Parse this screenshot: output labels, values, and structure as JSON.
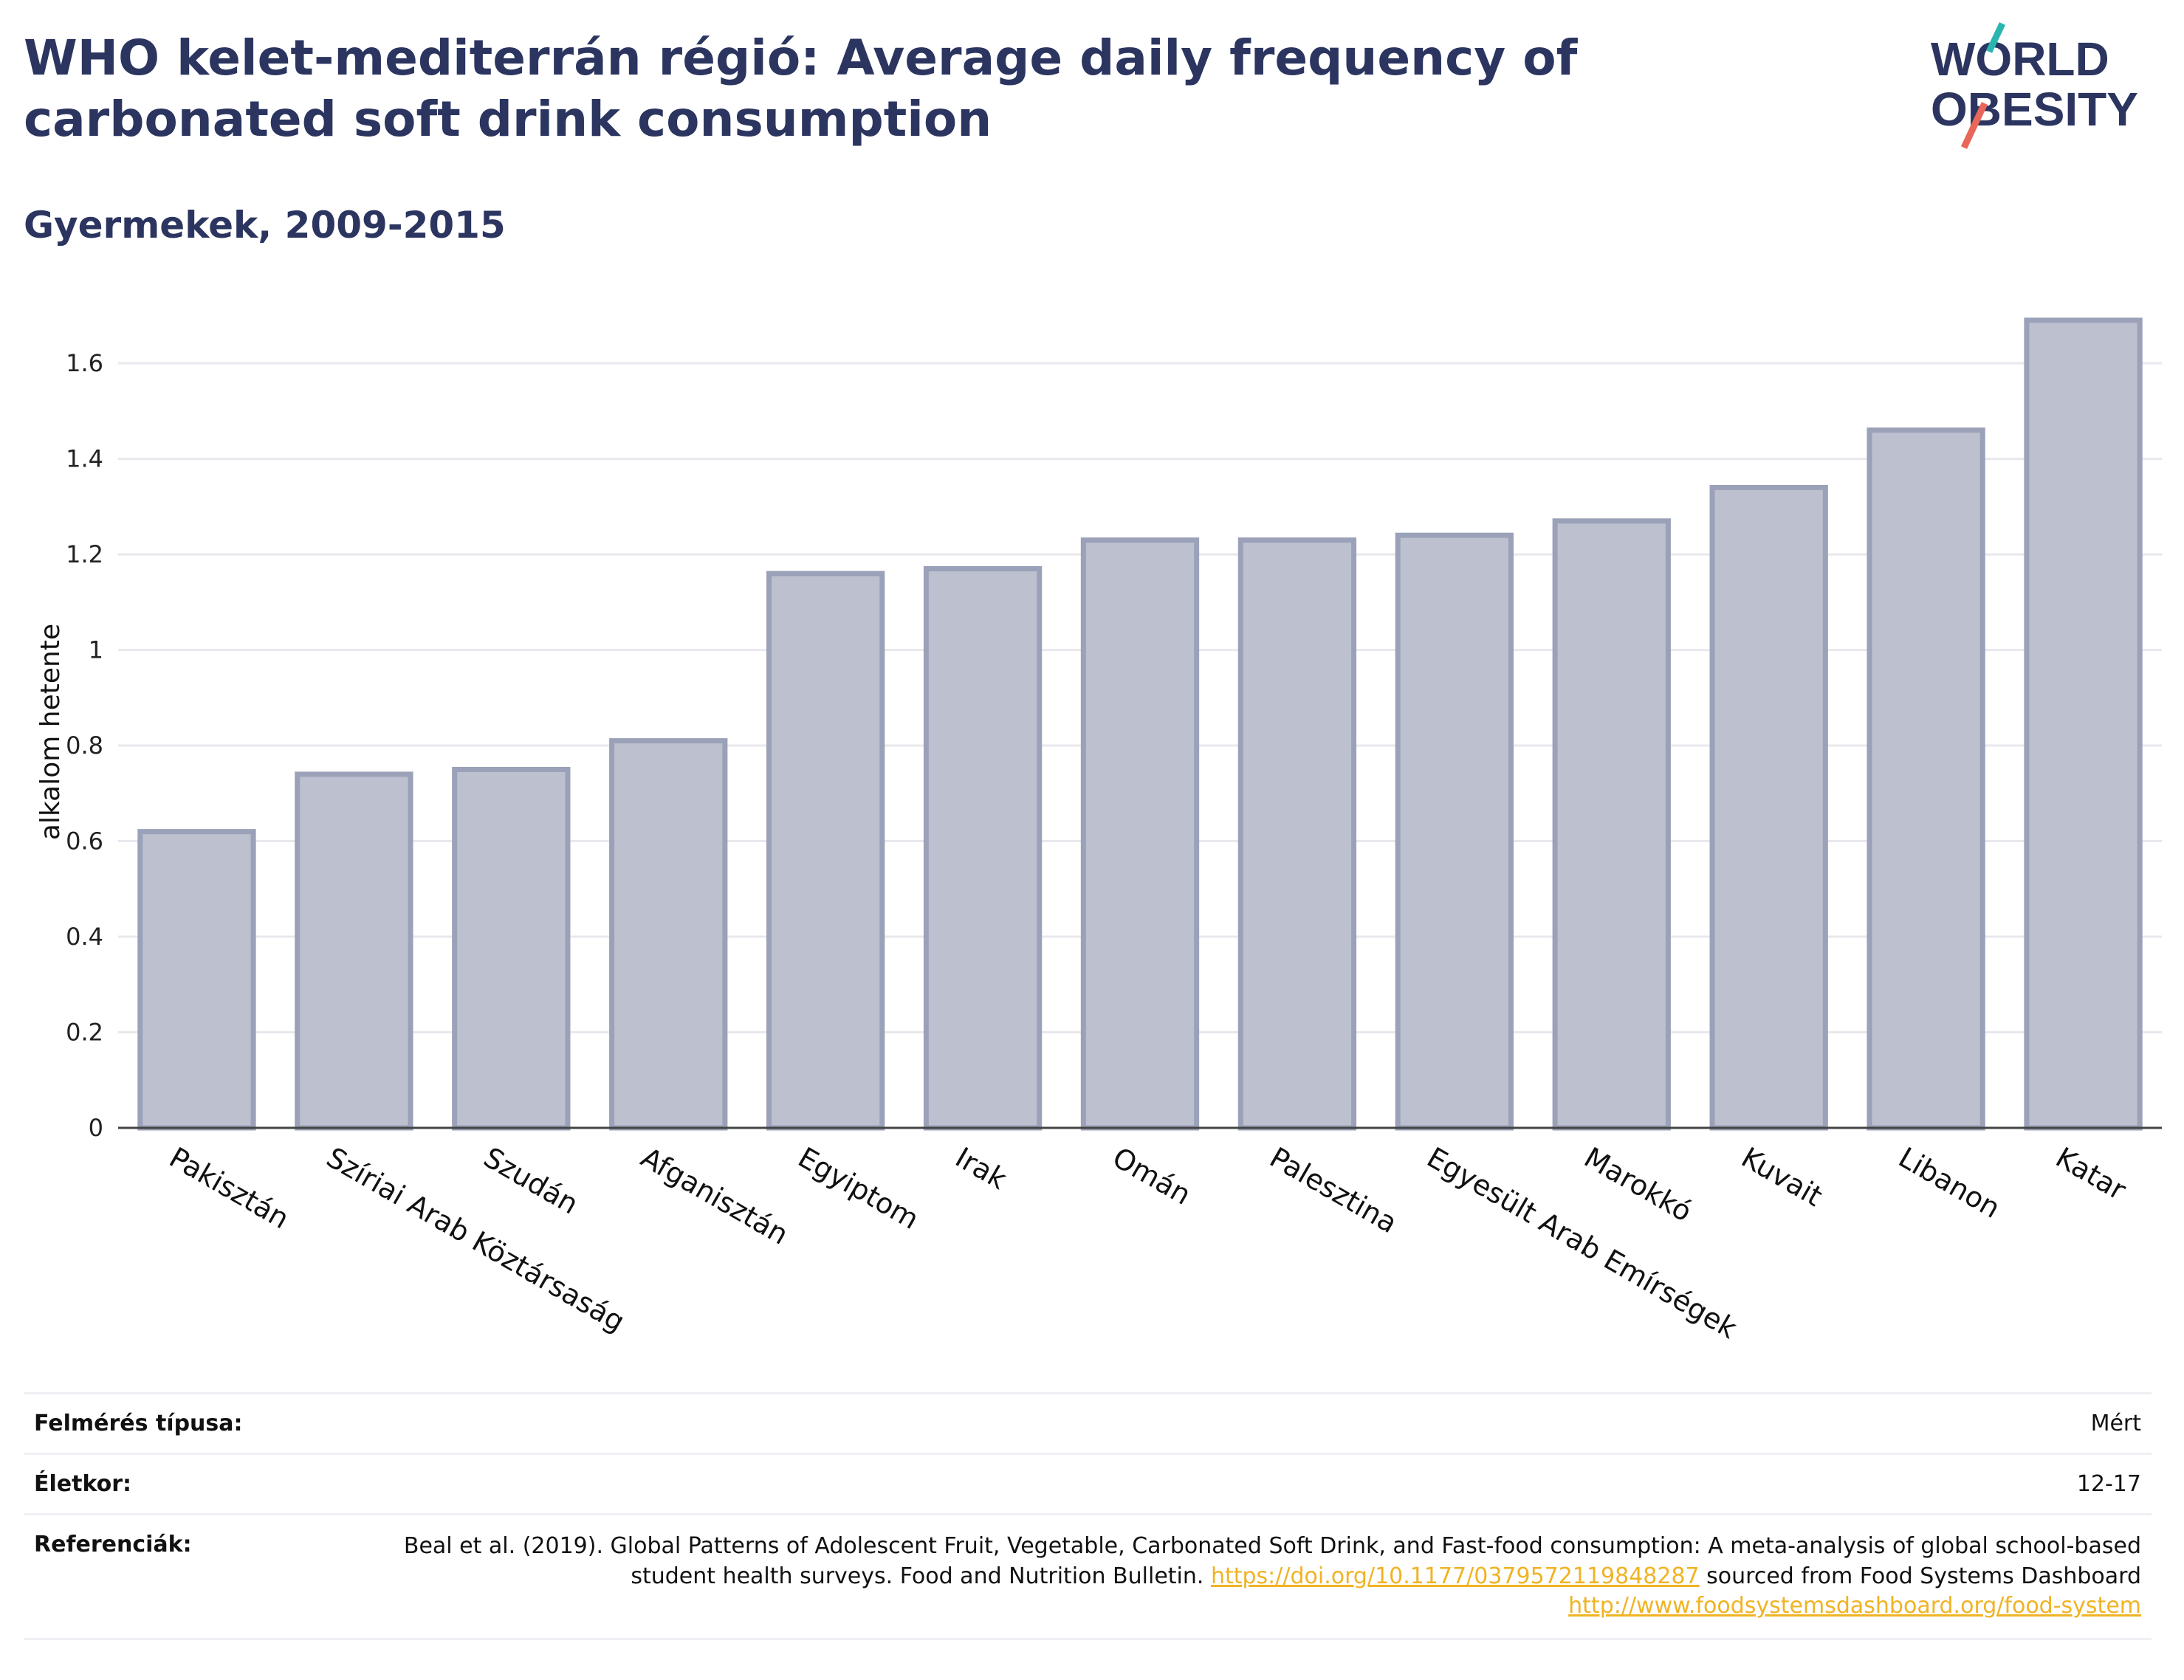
{
  "header": {
    "title": "WHO kelet-mediterrán régió: Average daily frequency of carbonated soft drink consumption",
    "subtitle": "Gyermekek, 2009-2015"
  },
  "logo": {
    "line1": "WORLD",
    "line2": "OBESITY",
    "accent_teal": "#2bb5b0",
    "accent_red": "#e8665a"
  },
  "colors": {
    "bar_fill": "#bcc0cf",
    "bar_stroke": "#9aa1b8",
    "title": "#2b3560",
    "link": "#f0b323"
  },
  "chart_data": {
    "type": "bar",
    "title": "WHO kelet-mediterrán régió: Average daily frequency of carbonated soft drink consumption",
    "subtitle": "Gyermekek, 2009-2015",
    "xlabel": "",
    "ylabel": "alkalom hetente",
    "ylim": [
      0,
      1.75
    ],
    "yticks": [
      0,
      0.2,
      0.4,
      0.6,
      0.8,
      1,
      1.2,
      1.4,
      1.6
    ],
    "ytick_labels": [
      "0",
      "0.2",
      "0.4",
      "0.6",
      "0.8",
      "1",
      "1.2",
      "1.4",
      "1.6"
    ],
    "grid": true,
    "categories": [
      "Pakisztán",
      "Szíriai Arab Köztársaság",
      "Szudán",
      "Afganisztán",
      "Egyiptom",
      "Irak",
      "Omán",
      "Palesztina",
      "Egyesült Arab Emírségek",
      "Marokkó",
      "Kuvait",
      "Libanon",
      "Katar"
    ],
    "values": [
      0.62,
      0.74,
      0.75,
      0.81,
      1.16,
      1.17,
      1.23,
      1.23,
      1.24,
      1.27,
      1.34,
      1.46,
      1.69
    ]
  },
  "info": {
    "survey_type_label": "Felmérés típusa:",
    "survey_type_value": "Mért",
    "age_label": "Életkor:",
    "age_value": "12-17",
    "references_label": "Referenciák:",
    "ref_text_1": "Beal et al. (2019). Global Patterns of Adolescent Fruit, Vegetable, Carbonated Soft Drink, and Fast-food consumption: A meta-analysis of global school-based student health surveys. Food and Nutrition Bulletin. ",
    "ref_link_1": "https://doi.org/10.1177/0379572119848287",
    "ref_text_2": " sourced from Food Systems Dashboard ",
    "ref_link_2": "http://www.foodsystemsdashboard.org/food-system"
  }
}
